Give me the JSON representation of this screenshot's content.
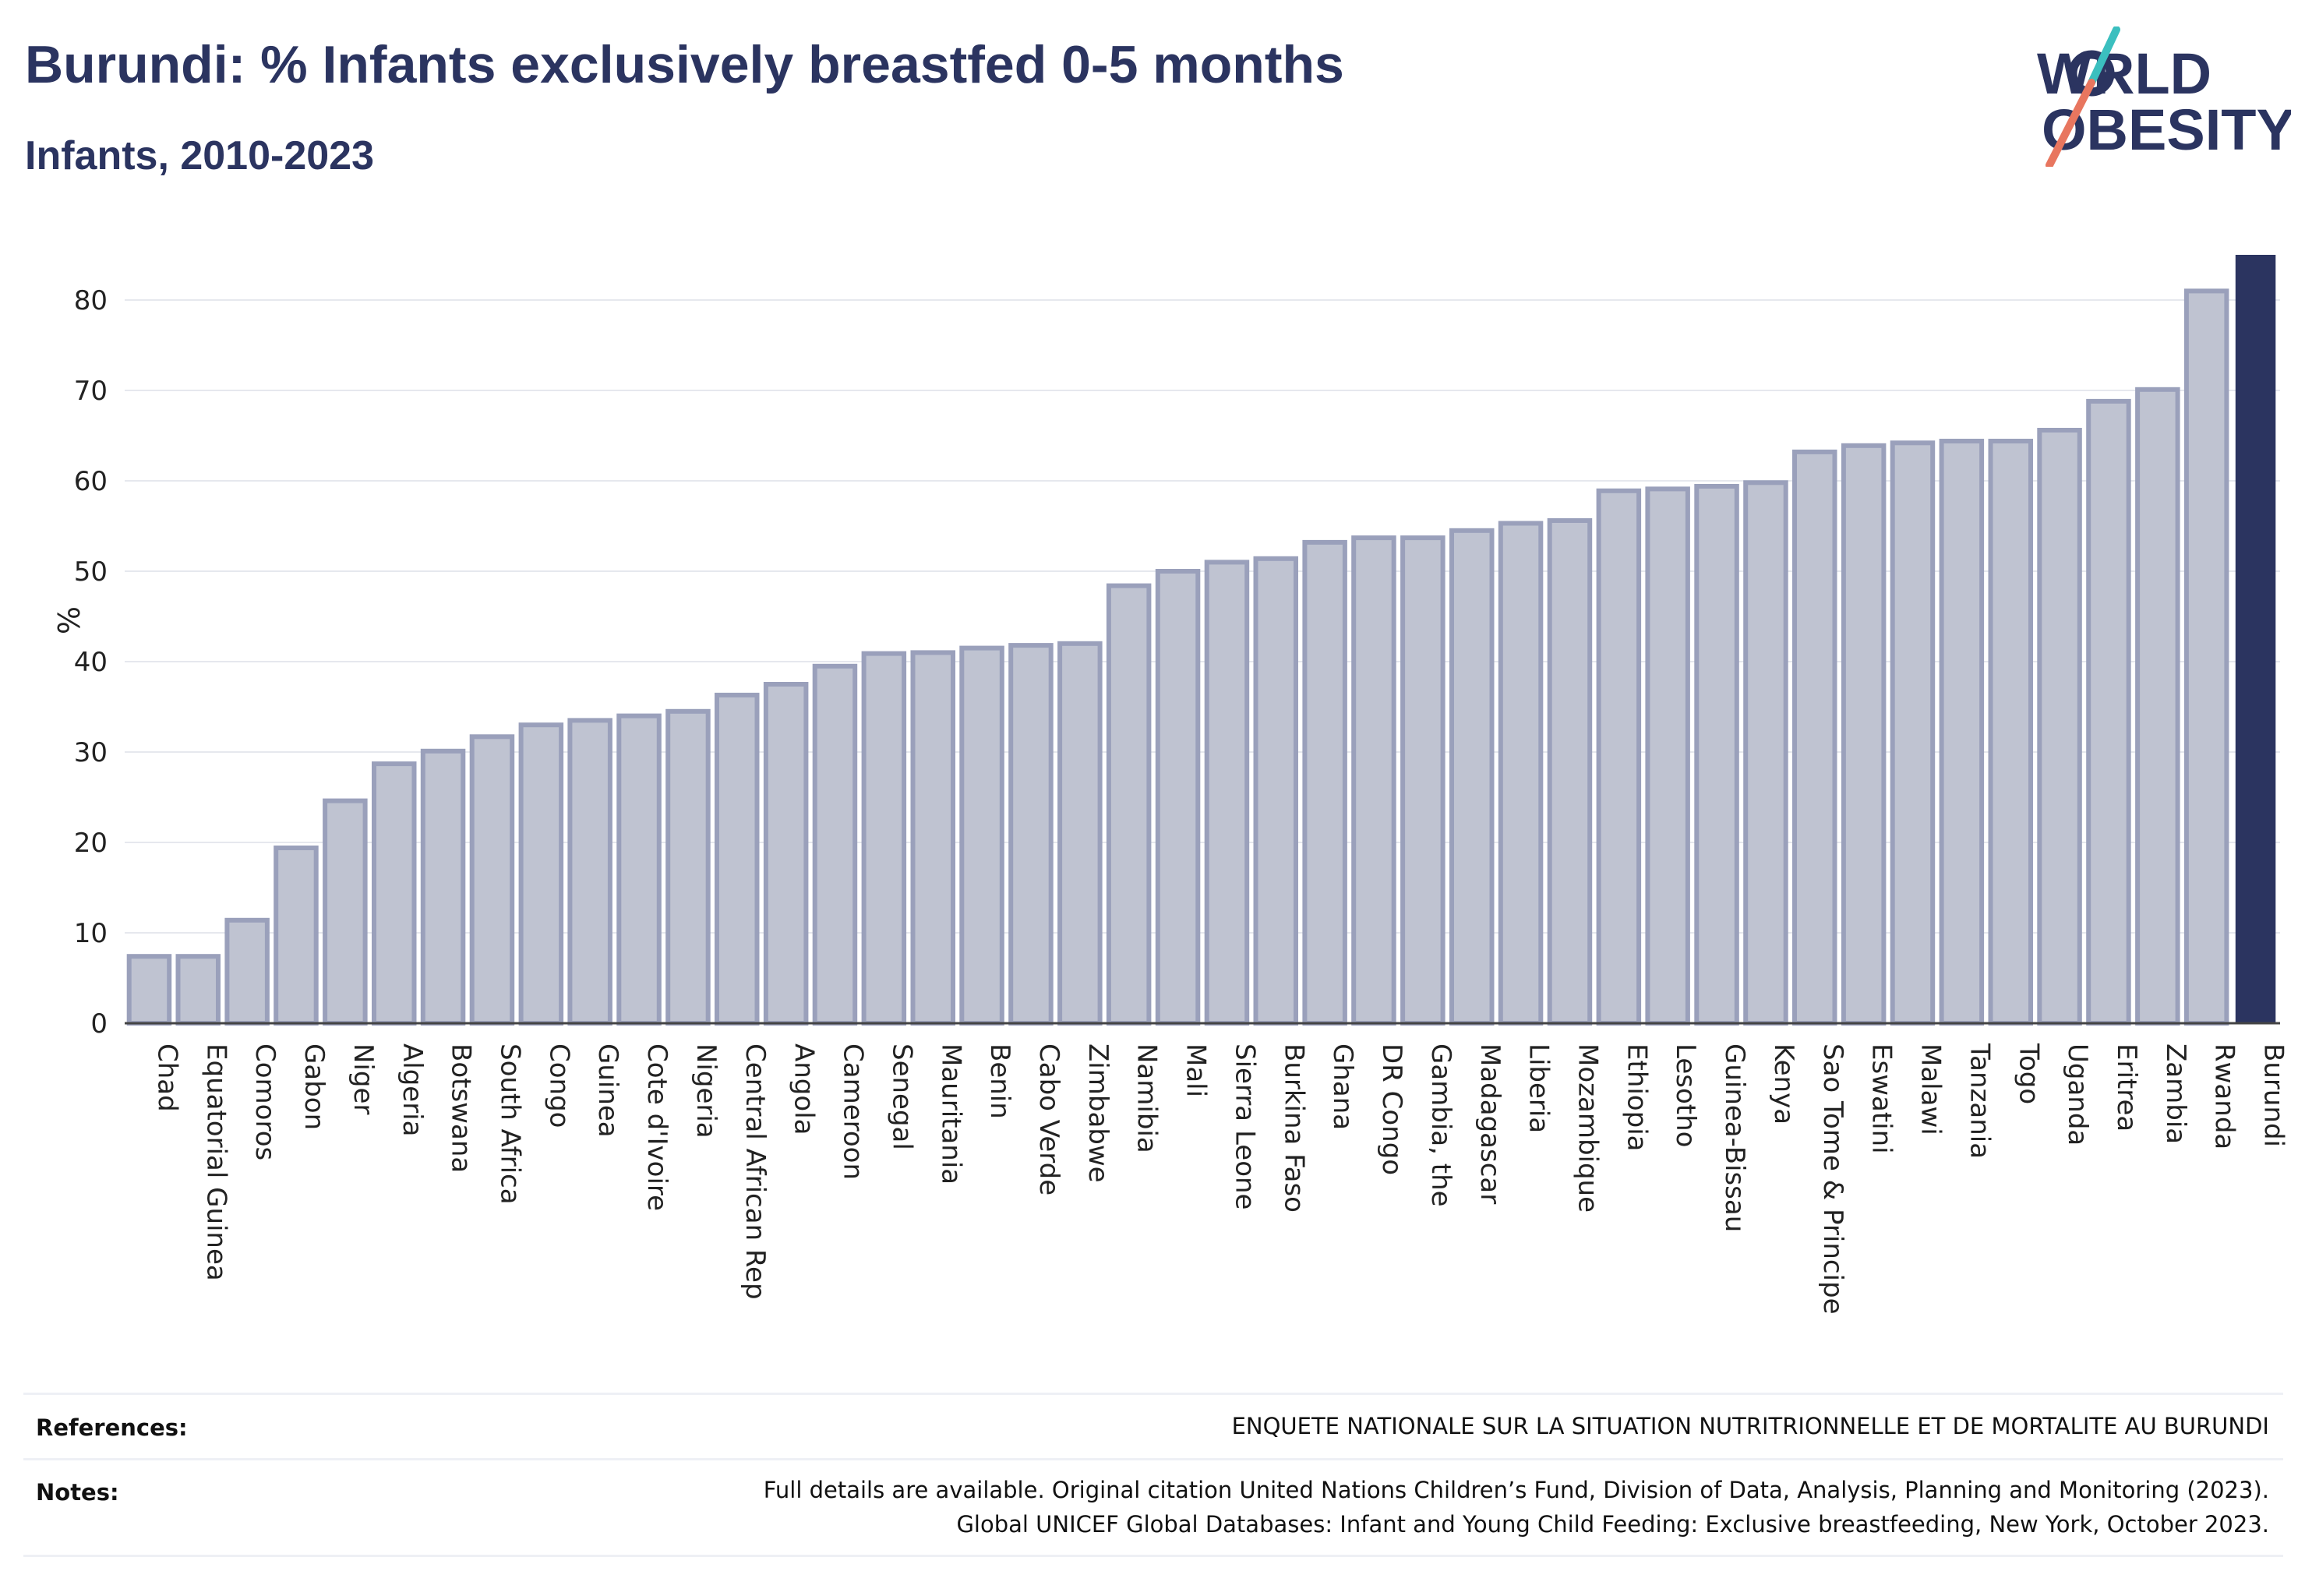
{
  "header": {
    "title": "Burundi: % Infants exclusively breastfed 0-5 months",
    "subtitle": "Infants, 2010-2023",
    "logo_text": "WORLD OBESITY"
  },
  "footer": {
    "references_label": "References:",
    "references_text": "ENQUETE NATIONALE SUR LA SITUATION NUTRITRIONNELLE ET DE MORTALITE AU BURUNDI",
    "notes_label": "Notes:",
    "notes_line1": "Full details are available. Original citation United Nations Children’s Fund, Division of Data, Analysis, Planning and Monitoring (2023).",
    "notes_line2": "Global UNICEF Global Databases: Infant and Young Child Feeding: Exclusive breastfeeding, New York, October 2023."
  },
  "colors": {
    "bar_fill": "#bfc3d1",
    "bar_stroke": "#9aa0bb",
    "highlight": "#2b3460",
    "grid": "#e6e8ee",
    "logo_teal": "#3bbfbf",
    "logo_coral": "#e8765f"
  },
  "chart_data": {
    "type": "bar",
    "title": "Burundi: % Infants exclusively breastfed 0-5 months",
    "subtitle": "Infants, 2010-2023",
    "xlabel": "",
    "ylabel": "%",
    "ylim": [
      0,
      85
    ],
    "yticks": [
      0,
      10,
      20,
      30,
      40,
      50,
      60,
      70,
      80
    ],
    "grid": true,
    "highlight_category": "Burundi",
    "categories": [
      "Chad",
      "Equatorial Guinea",
      "Comoros",
      "Gabon",
      "Niger",
      "Algeria",
      "Botswana",
      "South Africa",
      "Congo",
      "Guinea",
      "Cote d'Ivoire",
      "Nigeria",
      "Central African Rep",
      "Angola",
      "Cameroon",
      "Senegal",
      "Mauritania",
      "Benin",
      "Cabo Verde",
      "Zimbabwe",
      "Namibia",
      "Mali",
      "Sierra Leone",
      "Burkina Faso",
      "Ghana",
      "DR Congo",
      "Gambia, the",
      "Madagascar",
      "Liberia",
      "Mozambique",
      "Ethiopia",
      "Lesotho",
      "Guinea-Bissau",
      "Kenya",
      "Sao Tome & Principe",
      "Eswatini",
      "Malawi",
      "Tanzania",
      "Togo",
      "Uganda",
      "Eritrea",
      "Zambia",
      "Rwanda",
      "Burundi"
    ],
    "values": [
      7.4,
      7.4,
      11.4,
      19.4,
      24.6,
      28.7,
      30.1,
      31.7,
      33.0,
      33.5,
      34.0,
      34.5,
      36.3,
      37.5,
      39.5,
      40.9,
      41.0,
      41.5,
      41.8,
      42.0,
      48.4,
      50.0,
      51.0,
      51.4,
      53.2,
      53.7,
      53.7,
      54.5,
      55.3,
      55.6,
      58.9,
      59.1,
      59.4,
      59.8,
      63.2,
      63.9,
      64.2,
      64.4,
      64.4,
      65.6,
      68.8,
      70.1,
      81.0,
      85.0
    ]
  }
}
